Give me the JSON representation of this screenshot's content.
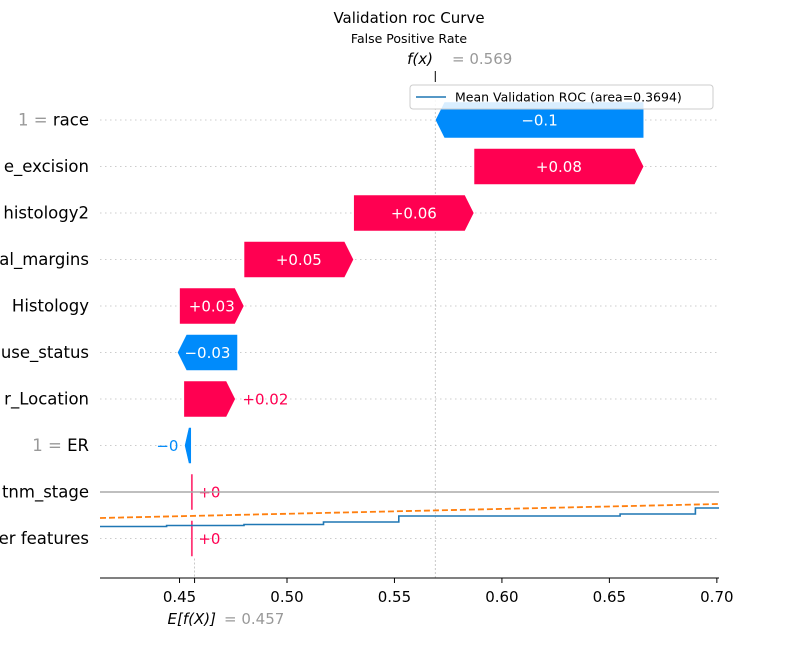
{
  "chart_data": {
    "type": "waterfall",
    "title": "Validation roc Curve",
    "subtitle": "False Positive Rate",
    "fx_label": "f(x)",
    "fx_value_text": "= 0.569",
    "fx_value": 0.569,
    "efx_label": "E[f(X)]",
    "efx_value_text": "= 0.457",
    "efx_value": 0.457,
    "xlim": [
      0.413,
      0.701
    ],
    "xticks": [
      {
        "value": 0.45,
        "label": "0.45"
      },
      {
        "value": 0.5,
        "label": "0.50"
      },
      {
        "value": 0.55,
        "label": "0.55"
      },
      {
        "value": 0.6,
        "label": "0.60"
      },
      {
        "value": 0.65,
        "label": "0.65"
      },
      {
        "value": 0.7,
        "label": "0.70"
      }
    ],
    "features": [
      {
        "prefix": "1 = ",
        "name": "race",
        "label_shown": "race",
        "start": 0.666,
        "end": 0.569,
        "text": "−0.1",
        "dir": "neg"
      },
      {
        "prefix": "",
        "name": "e_excision",
        "label_shown": "e_excision",
        "start": 0.587,
        "end": 0.666,
        "text": "+0.08",
        "dir": "pos"
      },
      {
        "prefix": "",
        "name": "histology2",
        "label_shown": "histology2",
        "start": 0.531,
        "end": 0.587,
        "text": "+0.06",
        "dir": "pos"
      },
      {
        "prefix": "",
        "name": "al_margins",
        "label_shown": "al_margins",
        "start": 0.48,
        "end": 0.531,
        "text": "+0.05",
        "dir": "pos"
      },
      {
        "prefix": "",
        "name": "Histology",
        "label_shown": "Histology",
        "start": 0.45,
        "end": 0.48,
        "text": "+0.03",
        "dir": "pos"
      },
      {
        "prefix": "",
        "name": "use_status",
        "label_shown": "use_status",
        "start": 0.477,
        "end": 0.449,
        "text": "−0.03",
        "dir": "neg"
      },
      {
        "prefix": "",
        "name": "r_Location",
        "label_shown": "r_Location",
        "start": 0.452,
        "end": 0.476,
        "text": "+0.02",
        "dir": "pos"
      },
      {
        "prefix": "1 = ",
        "name": "ER",
        "label_shown": "ER",
        "start": 0.4555,
        "end": 0.4523,
        "text": "−0",
        "dir": "neg"
      },
      {
        "prefix": "",
        "name": "tnm_stage",
        "label_shown": "tnm_stage",
        "start": 0.4553,
        "end": 0.4555,
        "text": "+0",
        "dir": "pos"
      },
      {
        "prefix": "",
        "name": "er features",
        "label_shown": "er features",
        "start": 0.4553,
        "end": 0.4555,
        "text": "+0",
        "dir": "pos"
      }
    ],
    "legend": {
      "label": "Mean Validation ROC (area=0.3694)",
      "placement": "top-right"
    },
    "roc_series": {
      "name": "Mean Validation ROC (area=0.3694)",
      "x": [
        0.413,
        0.444,
        0.444,
        0.48,
        0.48,
        0.517,
        0.517,
        0.552,
        0.552,
        0.655,
        0.655,
        0.69,
        0.69,
        0.701
      ],
      "y": [
        0.95,
        0.95,
        0.7,
        0.7,
        0.3,
        0.3,
        -0.05,
        -0.05,
        -0.55,
        -0.55,
        -0.8,
        -0.8,
        -1.2,
        -1.2
      ]
    },
    "chance_line": {
      "x": [
        0.413,
        0.701
      ],
      "y": [
        -0.45,
        -2.3
      ]
    },
    "gray_line_row": 8.0,
    "colors": {
      "pos": "#ff0051",
      "neg": "#008bfb",
      "roc": "#1f77b4",
      "chance": "#ff7f0e",
      "gray": "#aaaaaa",
      "muted": "#999999"
    }
  }
}
